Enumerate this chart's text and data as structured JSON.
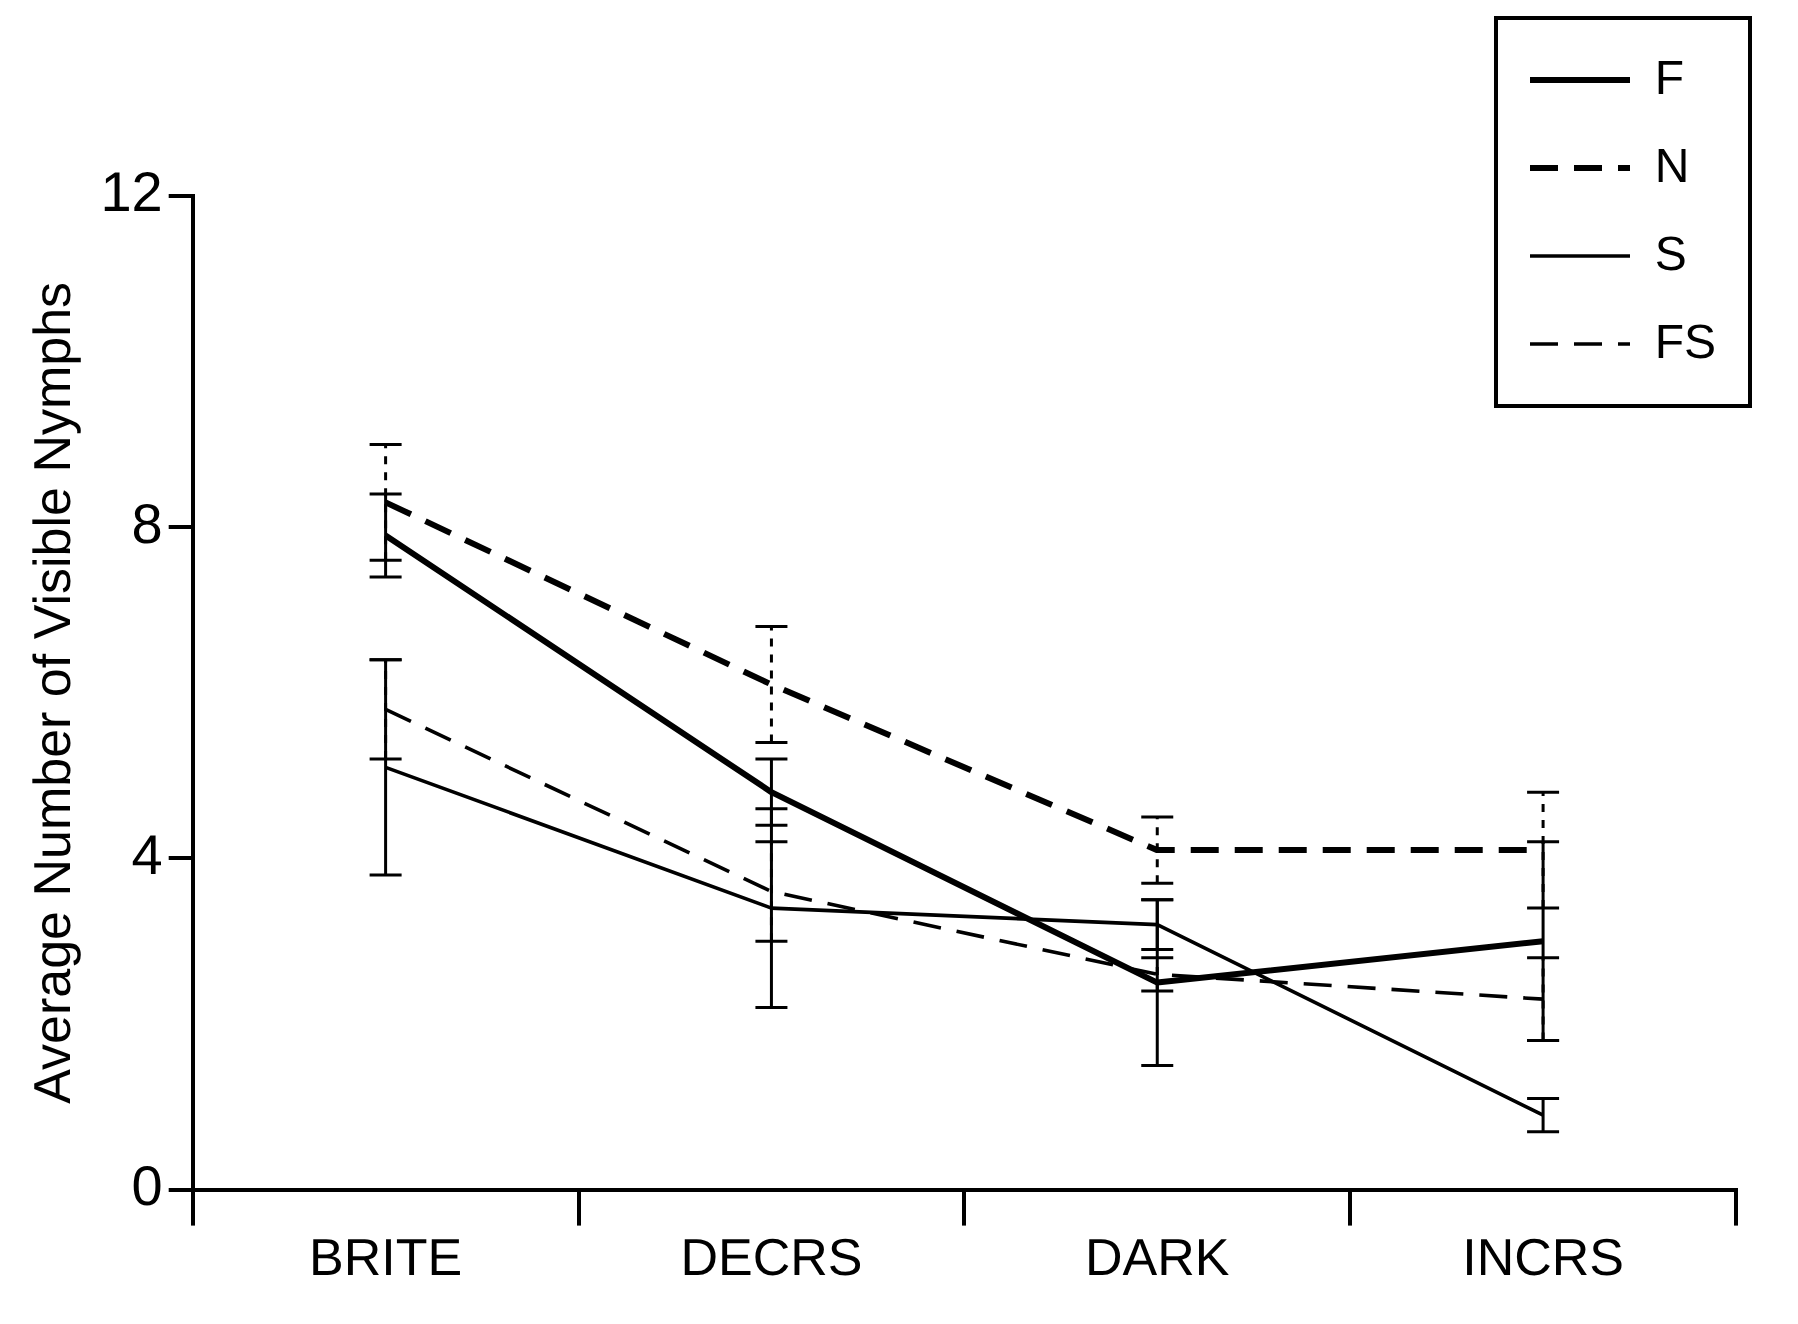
{
  "chart_data": {
    "type": "line",
    "ylabel": "Average Number of Visible Nymphs",
    "categories": [
      "BRITE",
      "DECRS",
      "DARK",
      "INCRS"
    ],
    "ylim": [
      0,
      12
    ],
    "yticks": [
      0,
      4,
      8,
      12
    ],
    "legend": "top right",
    "marker": "none",
    "series": [
      {
        "name": "F",
        "color": "#000000",
        "line_style": "solid",
        "values": [
          7.9,
          4.8,
          2.5,
          3.0
        ],
        "errors": [
          0.5,
          0.4,
          1.0,
          1.2
        ]
      },
      {
        "name": "N",
        "color": "#000000",
        "line_style": "dashed",
        "values": [
          8.3,
          6.1,
          4.1,
          4.1
        ],
        "errors": [
          0.7,
          0.7,
          0.4,
          0.7
        ]
      },
      {
        "name": "S",
        "color": "#000000",
        "line_style": "solid",
        "values": [
          5.1,
          3.4,
          3.2,
          0.9
        ],
        "errors": [
          1.3,
          1.2,
          0.3,
          0.2
        ]
      },
      {
        "name": "FS",
        "color": "#000000",
        "line_style": "dashed",
        "values": [
          5.8,
          3.6,
          2.6,
          2.3
        ],
        "errors": [
          0.6,
          0.6,
          0.2,
          0.5
        ]
      }
    ]
  }
}
